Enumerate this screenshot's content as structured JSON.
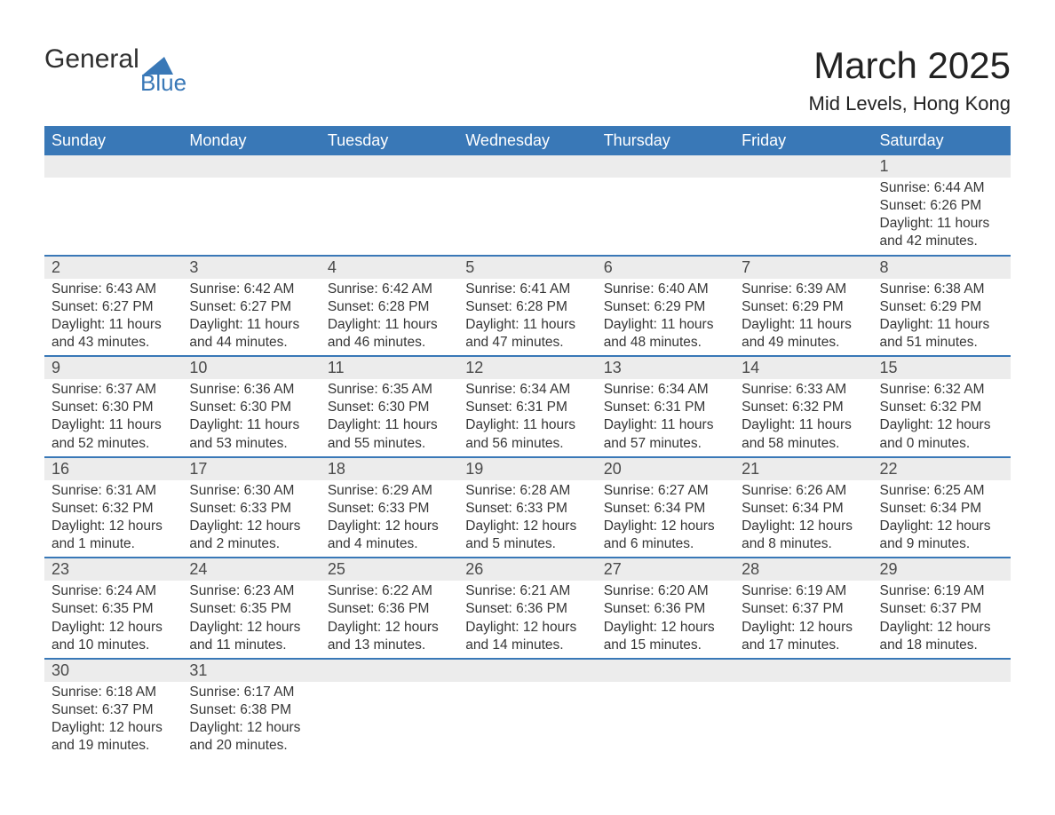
{
  "logo": {
    "word1": "General",
    "word2": "Blue",
    "color_accent": "#3978b7",
    "color_text": "#2f2f2f"
  },
  "header": {
    "month_title": "March 2025",
    "location": "Mid Levels, Hong Kong"
  },
  "colors": {
    "header_row_bg": "#3978b7",
    "header_row_text": "#ffffff",
    "daynum_bg": "#ececec",
    "daynum_text": "#4a4a4a",
    "detail_text": "#363636",
    "row_divider": "#3978b7",
    "page_bg": "#ffffff"
  },
  "weekdays": [
    "Sunday",
    "Monday",
    "Tuesday",
    "Wednesday",
    "Thursday",
    "Friday",
    "Saturday"
  ],
  "labels": {
    "sunrise": "Sunrise: ",
    "sunset": "Sunset: ",
    "daylight": "Daylight: "
  },
  "weeks": [
    {
      "nums": [
        "",
        "",
        "",
        "",
        "",
        "",
        "1"
      ],
      "cells": [
        null,
        null,
        null,
        null,
        null,
        null,
        {
          "sunrise": "6:44 AM",
          "sunset": "6:26 PM",
          "daylight": "11 hours and 42 minutes."
        }
      ]
    },
    {
      "nums": [
        "2",
        "3",
        "4",
        "5",
        "6",
        "7",
        "8"
      ],
      "cells": [
        {
          "sunrise": "6:43 AM",
          "sunset": "6:27 PM",
          "daylight": "11 hours and 43 minutes."
        },
        {
          "sunrise": "6:42 AM",
          "sunset": "6:27 PM",
          "daylight": "11 hours and 44 minutes."
        },
        {
          "sunrise": "6:42 AM",
          "sunset": "6:28 PM",
          "daylight": "11 hours and 46 minutes."
        },
        {
          "sunrise": "6:41 AM",
          "sunset": "6:28 PM",
          "daylight": "11 hours and 47 minutes."
        },
        {
          "sunrise": "6:40 AM",
          "sunset": "6:29 PM",
          "daylight": "11 hours and 48 minutes."
        },
        {
          "sunrise": "6:39 AM",
          "sunset": "6:29 PM",
          "daylight": "11 hours and 49 minutes."
        },
        {
          "sunrise": "6:38 AM",
          "sunset": "6:29 PM",
          "daylight": "11 hours and 51 minutes."
        }
      ]
    },
    {
      "nums": [
        "9",
        "10",
        "11",
        "12",
        "13",
        "14",
        "15"
      ],
      "cells": [
        {
          "sunrise": "6:37 AM",
          "sunset": "6:30 PM",
          "daylight": "11 hours and 52 minutes."
        },
        {
          "sunrise": "6:36 AM",
          "sunset": "6:30 PM",
          "daylight": "11 hours and 53 minutes."
        },
        {
          "sunrise": "6:35 AM",
          "sunset": "6:30 PM",
          "daylight": "11 hours and 55 minutes."
        },
        {
          "sunrise": "6:34 AM",
          "sunset": "6:31 PM",
          "daylight": "11 hours and 56 minutes."
        },
        {
          "sunrise": "6:34 AM",
          "sunset": "6:31 PM",
          "daylight": "11 hours and 57 minutes."
        },
        {
          "sunrise": "6:33 AM",
          "sunset": "6:32 PM",
          "daylight": "11 hours and 58 minutes."
        },
        {
          "sunrise": "6:32 AM",
          "sunset": "6:32 PM",
          "daylight": "12 hours and 0 minutes."
        }
      ]
    },
    {
      "nums": [
        "16",
        "17",
        "18",
        "19",
        "20",
        "21",
        "22"
      ],
      "cells": [
        {
          "sunrise": "6:31 AM",
          "sunset": "6:32 PM",
          "daylight": "12 hours and 1 minute."
        },
        {
          "sunrise": "6:30 AM",
          "sunset": "6:33 PM",
          "daylight": "12 hours and 2 minutes."
        },
        {
          "sunrise": "6:29 AM",
          "sunset": "6:33 PM",
          "daylight": "12 hours and 4 minutes."
        },
        {
          "sunrise": "6:28 AM",
          "sunset": "6:33 PM",
          "daylight": "12 hours and 5 minutes."
        },
        {
          "sunrise": "6:27 AM",
          "sunset": "6:34 PM",
          "daylight": "12 hours and 6 minutes."
        },
        {
          "sunrise": "6:26 AM",
          "sunset": "6:34 PM",
          "daylight": "12 hours and 8 minutes."
        },
        {
          "sunrise": "6:25 AM",
          "sunset": "6:34 PM",
          "daylight": "12 hours and 9 minutes."
        }
      ]
    },
    {
      "nums": [
        "23",
        "24",
        "25",
        "26",
        "27",
        "28",
        "29"
      ],
      "cells": [
        {
          "sunrise": "6:24 AM",
          "sunset": "6:35 PM",
          "daylight": "12 hours and 10 minutes."
        },
        {
          "sunrise": "6:23 AM",
          "sunset": "6:35 PM",
          "daylight": "12 hours and 11 minutes."
        },
        {
          "sunrise": "6:22 AM",
          "sunset": "6:36 PM",
          "daylight": "12 hours and 13 minutes."
        },
        {
          "sunrise": "6:21 AM",
          "sunset": "6:36 PM",
          "daylight": "12 hours and 14 minutes."
        },
        {
          "sunrise": "6:20 AM",
          "sunset": "6:36 PM",
          "daylight": "12 hours and 15 minutes."
        },
        {
          "sunrise": "6:19 AM",
          "sunset": "6:37 PM",
          "daylight": "12 hours and 17 minutes."
        },
        {
          "sunrise": "6:19 AM",
          "sunset": "6:37 PM",
          "daylight": "12 hours and 18 minutes."
        }
      ]
    },
    {
      "nums": [
        "30",
        "31",
        "",
        "",
        "",
        "",
        ""
      ],
      "cells": [
        {
          "sunrise": "6:18 AM",
          "sunset": "6:37 PM",
          "daylight": "12 hours and 19 minutes."
        },
        {
          "sunrise": "6:17 AM",
          "sunset": "6:38 PM",
          "daylight": "12 hours and 20 minutes."
        },
        null,
        null,
        null,
        null,
        null
      ]
    }
  ]
}
